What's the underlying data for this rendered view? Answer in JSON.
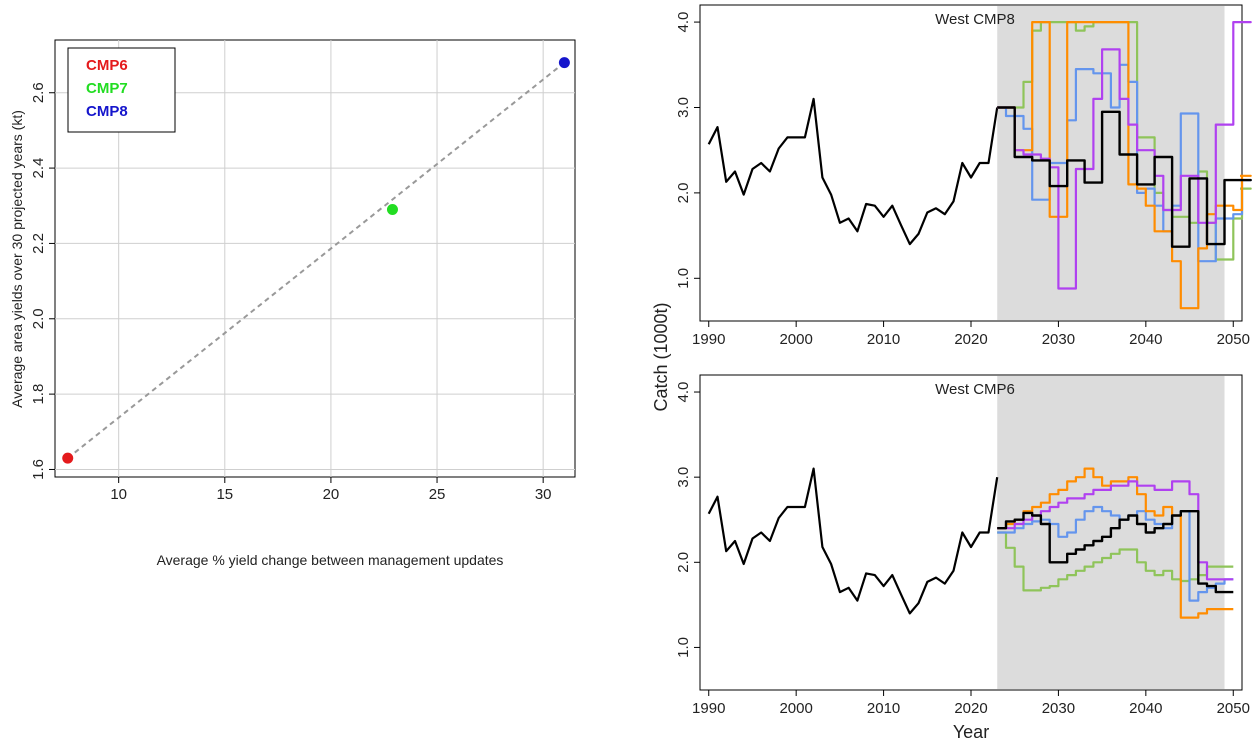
{
  "chart_data": [
    {
      "type": "scatter",
      "xlabel": "Average % yield change between management updates",
      "ylabel": "Average area yields over 30 projected years (kt)",
      "xlim": [
        7,
        31.5
      ],
      "ylim": [
        1.58,
        2.74
      ],
      "xticks": [
        10,
        15,
        20,
        25,
        30
      ],
      "yticks": [
        1.6,
        1.8,
        2.0,
        2.2,
        2.4,
        2.6
      ],
      "grid": true,
      "legend": "top-left",
      "connector": "dashed",
      "points": [
        {
          "name": "CMP6",
          "x": 7.6,
          "y": 1.63,
          "color": "#e41a1c"
        },
        {
          "name": "CMP7",
          "x": 22.9,
          "y": 2.29,
          "color": "#22dd22"
        },
        {
          "name": "CMP8",
          "x": 31.0,
          "y": 2.68,
          "color": "#1515cc"
        }
      ],
      "legend_entries": [
        {
          "label": "CMP6",
          "color": "#e41a1c"
        },
        {
          "label": "CMP7",
          "color": "#22dd22"
        },
        {
          "label": "CMP8",
          "color": "#1515cc"
        }
      ]
    },
    {
      "type": "line",
      "shared_ylabel": "Catch (1000t)",
      "xlabel": "Year",
      "xlim": [
        1989,
        2051
      ],
      "ylim": [
        0.5,
        4.2
      ],
      "xticks": [
        1990,
        2000,
        2010,
        2020,
        2030,
        2040,
        2050
      ],
      "yticks": [
        1.0,
        2.0,
        3.0,
        4.0
      ],
      "ytick_labels": [
        "1.0",
        "2.0",
        "3.0",
        "4.0"
      ],
      "shade": [
        2023,
        2049
      ],
      "history_x_start": 1990,
      "projection_x_start": 2023,
      "history": [
        2.57,
        2.77,
        2.13,
        2.25,
        1.98,
        2.28,
        2.35,
        2.25,
        2.52,
        2.65,
        2.65,
        2.65,
        3.1,
        2.18,
        1.98,
        1.65,
        1.7,
        1.55,
        1.87,
        1.85,
        1.72,
        1.85,
        1.62,
        1.4,
        1.52,
        1.77,
        1.82,
        1.75,
        1.9,
        2.35,
        2.18,
        2.35,
        2.35,
        3.0
      ],
      "panels": [
        {
          "title": "West CMP8",
          "series": [
            {
              "color": "#8fc45a",
              "values": [
                3.0,
                3.0,
                3.0,
                3.3,
                3.9,
                4.0,
                4.0,
                4.0,
                4.0,
                3.9,
                3.95,
                4.0,
                4.0,
                4.0,
                4.0,
                4.0,
                2.65,
                2.65,
                2.0,
                1.8,
                1.72,
                1.72,
                1.65,
                2.25,
                1.65,
                1.22,
                1.22,
                1.7,
                2.05,
                2.05
              ]
            },
            {
              "color": "#6495ed",
              "values": [
                3.0,
                2.9,
                2.9,
                2.75,
                1.92,
                1.92,
                2.35,
                2.35,
                2.85,
                3.45,
                3.45,
                3.4,
                3.4,
                3.0,
                3.5,
                3.3,
                2.0,
                2.05,
                1.85,
                1.55,
                1.85,
                2.93,
                2.93,
                1.2,
                1.2,
                1.7,
                1.7,
                1.75,
                2.15,
                2.15
              ]
            },
            {
              "color": "#ff8c00",
              "values": [
                3.0,
                3.0,
                2.5,
                2.5,
                4.0,
                4.0,
                1.72,
                1.72,
                4.0,
                4.0,
                4.0,
                4.0,
                4.0,
                4.0,
                4.0,
                2.1,
                2.05,
                1.85,
                1.55,
                1.55,
                1.2,
                0.65,
                0.65,
                1.35,
                1.75,
                1.85,
                1.85,
                1.8,
                2.2,
                2.2
              ]
            },
            {
              "color": "#b041f0",
              "values": [
                3.0,
                3.0,
                2.5,
                2.45,
                2.45,
                2.4,
                2.3,
                0.88,
                0.88,
                2.28,
                2.28,
                3.1,
                3.68,
                3.68,
                3.1,
                2.8,
                2.5,
                2.5,
                2.2,
                1.8,
                1.8,
                2.2,
                2.2,
                1.65,
                1.65,
                2.8,
                2.8,
                4.0,
                4.0,
                4.0
              ]
            },
            {
              "color": "#000000",
              "values": [
                3.0,
                3.0,
                2.42,
                2.42,
                2.38,
                2.38,
                2.08,
                2.08,
                2.38,
                2.38,
                2.12,
                2.12,
                2.95,
                2.95,
                2.45,
                2.45,
                2.1,
                2.1,
                2.42,
                2.42,
                1.37,
                1.37,
                2.17,
                2.17,
                1.4,
                1.4,
                2.15,
                2.15,
                2.15,
                2.15
              ]
            }
          ]
        },
        {
          "title": "West CMP6",
          "series": [
            {
              "color": "#8fc45a",
              "values": [
                2.35,
                2.17,
                1.95,
                1.67,
                1.67,
                1.7,
                1.72,
                1.8,
                1.85,
                1.9,
                1.95,
                2.0,
                2.05,
                2.1,
                2.15,
                2.15,
                2.0,
                1.9,
                1.85,
                1.9,
                1.8,
                1.78,
                1.8,
                1.85,
                1.95,
                1.95,
                1.95
              ]
            },
            {
              "color": "#6495ed",
              "values": [
                2.35,
                2.35,
                2.4,
                2.45,
                2.48,
                2.5,
                2.45,
                2.3,
                2.35,
                2.5,
                2.6,
                2.65,
                2.6,
                2.55,
                2.5,
                2.55,
                2.6,
                2.5,
                2.45,
                2.4,
                2.55,
                2.6,
                1.55,
                1.65,
                1.7,
                1.75,
                1.8
              ]
            },
            {
              "color": "#ff8c00",
              "values": [
                2.4,
                2.45,
                2.5,
                2.6,
                2.65,
                2.7,
                2.8,
                2.85,
                2.95,
                3.0,
                3.1,
                3.0,
                2.9,
                2.95,
                2.95,
                3.0,
                2.8,
                2.6,
                2.55,
                2.65,
                2.55,
                1.35,
                1.35,
                1.4,
                1.45,
                1.45,
                1.45
              ]
            },
            {
              "color": "#b041f0",
              "values": [
                2.4,
                2.4,
                2.45,
                2.5,
                2.55,
                2.6,
                2.65,
                2.7,
                2.75,
                2.75,
                2.8,
                2.85,
                2.85,
                2.9,
                2.9,
                2.95,
                2.9,
                2.9,
                2.85,
                2.85,
                2.95,
                2.95,
                2.8,
                2.0,
                1.8,
                1.8,
                1.8
              ]
            },
            {
              "color": "#000000",
              "values": [
                2.4,
                2.48,
                2.5,
                2.58,
                2.55,
                2.45,
                2.0,
                2.0,
                2.1,
                2.15,
                2.2,
                2.25,
                2.3,
                2.4,
                2.5,
                2.55,
                2.45,
                2.35,
                2.4,
                2.45,
                2.55,
                2.6,
                2.6,
                1.75,
                1.72,
                1.65,
                1.65
              ]
            }
          ]
        }
      ]
    }
  ]
}
